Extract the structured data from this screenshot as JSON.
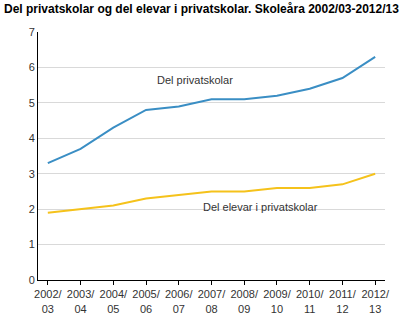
{
  "chart_data": {
    "type": "line",
    "title": "Del privatskolar og del elevar i privatskolar. Skoleåra 2002/03-2012/13",
    "categories": [
      "2002/03",
      "2003/04",
      "2004/05",
      "2005/06",
      "2006/07",
      "2007/08",
      "2008/09",
      "2009/10",
      "2010/11",
      "2011/12",
      "2012/13"
    ],
    "series": [
      {
        "name": "Del privatskolar",
        "color": "#3a8ec4",
        "values": [
          3.3,
          3.7,
          4.3,
          4.8,
          4.9,
          5.1,
          5.1,
          5.2,
          5.4,
          5.7,
          6.3
        ]
      },
      {
        "name": "Del elevar i privatskolar",
        "color": "#f5c21b",
        "values": [
          1.9,
          2.0,
          2.1,
          2.3,
          2.4,
          2.5,
          2.5,
          2.6,
          2.6,
          2.7,
          3.0
        ]
      }
    ],
    "ylim": [
      0,
      7
    ],
    "yticks": [
      0,
      1,
      2,
      3,
      4,
      5,
      6,
      7
    ],
    "grid": true
  }
}
